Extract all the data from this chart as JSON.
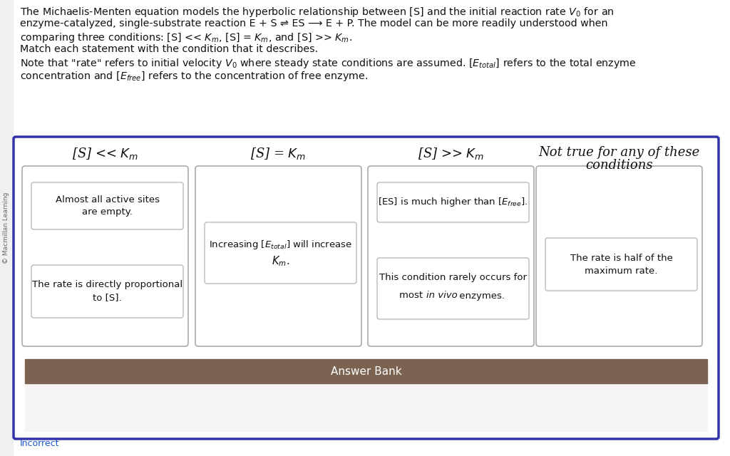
{
  "bg_color": "#ffffff",
  "outer_border_color": "#3333aa",
  "answer_bank_color": "#7b6251",
  "answer_bank_text": "Answer Bank",
  "incorrect_text": "Incorrect",
  "incorrect_color": "#1a55cc",
  "sidebar_text": "© Macmillan Learning",
  "header_lines": [
    "The Michaelis-Menten equation models the hyperbolic relationship between [S] and the initial reaction rate $V_0$ for an",
    "enzyme-catalyzed, single-substrate reaction E + S ⇌ ES ⟶ E + P. The model can be more readily understood when",
    "comparing three conditions: [S] << $K_m$, [S] = $K_m$, and [S] >> $K_m$.",
    "Match each statement with the condition that it describes.",
    "Note that \"rate\" refers to initial velocity $V_0$ where steady state conditions are assumed. [$E_{total}$] refers to the total enzyme",
    "concentration and [$E_{free}$] refers to the concentration of free enzyme."
  ],
  "col_headers": [
    "[S] << $K_m$",
    "[S] = $K_m$",
    "[S] >> $K_m$",
    "Not true for any of these\nconditions"
  ],
  "col_header_fontsize": 13,
  "card_fontsize": 9.5,
  "header_fontsize": 10.3
}
